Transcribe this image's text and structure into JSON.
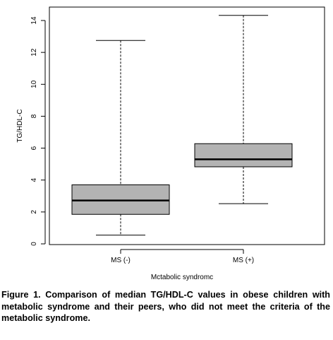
{
  "chart_data": {
    "type": "boxplot",
    "title": "",
    "xlabel": "Mctabolic syndromc",
    "ylabel": "TG/HDL-C",
    "ylim": [
      0,
      14.8
    ],
    "yticks": [
      0,
      2,
      4,
      6,
      8,
      10,
      12,
      14
    ],
    "ytick_labels": [
      "0",
      "2",
      "4",
      "6",
      "8",
      "10",
      "12",
      "14"
    ],
    "categories": [
      "MS (-)",
      "MS (+)"
    ],
    "boxes": [
      {
        "name": "MS (-)",
        "whisker_low": 0.55,
        "q1": 1.85,
        "median": 2.72,
        "q3": 3.7,
        "whisker_high": 12.75
      },
      {
        "name": "MS (+)",
        "whisker_low": 2.52,
        "q1": 4.83,
        "median": 5.3,
        "q3": 6.28,
        "whisker_high": 14.32
      }
    ],
    "box_fill": "#b3b3b3",
    "grid": false
  },
  "caption": "Figure 1. Comparison of median TG/HDL-C values in obese children with metabolic syndrome and their peers, who did not meet the criteria of the metabolic syndrome."
}
